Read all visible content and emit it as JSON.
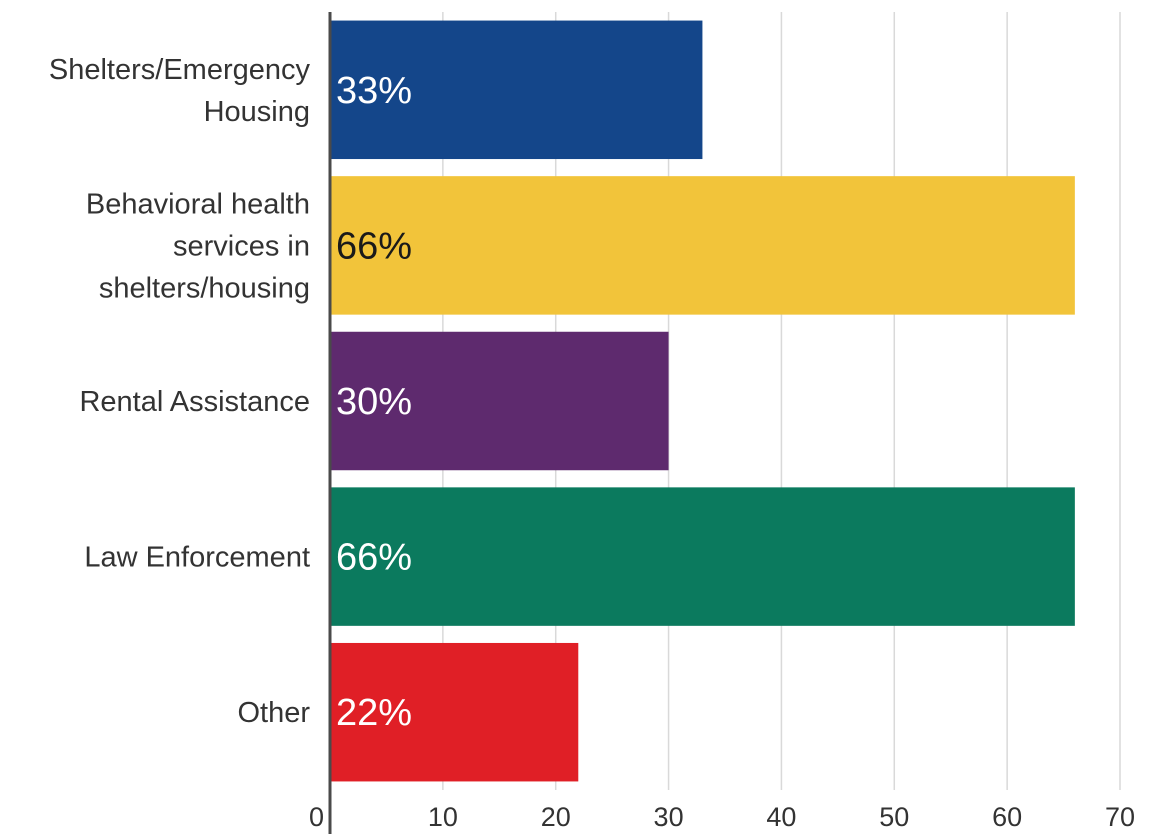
{
  "chart_data": {
    "type": "bar",
    "orientation": "horizontal",
    "categories": [
      [
        "Shelters/Emergency",
        "Housing"
      ],
      [
        "Behavioral health",
        "services in",
        "shelters/housing"
      ],
      [
        "Rental Assistance"
      ],
      [
        "Law Enforcement"
      ],
      [
        "Other"
      ]
    ],
    "values": [
      33,
      66,
      30,
      66,
      22
    ],
    "data_labels": [
      "33%",
      "66%",
      "30%",
      "66%",
      "22%"
    ],
    "bar_colors": [
      "#14468a",
      "#f2c43a",
      "#5e2a6e",
      "#0b7a5e",
      "#e01f26"
    ],
    "data_label_colors": [
      "#ffffff",
      "#1a1a1a",
      "#ffffff",
      "#ffffff",
      "#ffffff"
    ],
    "xlim": [
      0,
      70
    ],
    "x_ticks": [
      0,
      10,
      20,
      30,
      40,
      50,
      60,
      70
    ],
    "grid": true,
    "title": "",
    "xlabel": "",
    "ylabel": ""
  }
}
